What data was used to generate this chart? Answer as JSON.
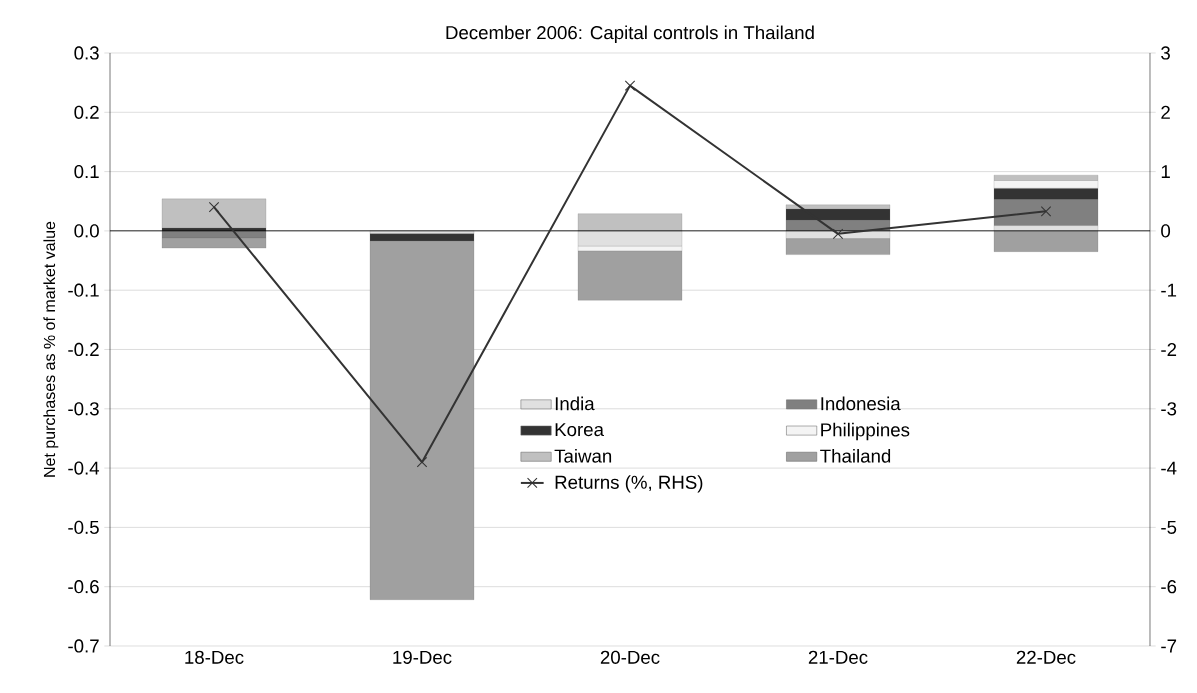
{
  "chart_data": {
    "type": "bar",
    "stacked": true,
    "title": "December 2006: Capital controls in Thailand",
    "ylabel": "Net purchases as % of market value",
    "categories": [
      "18-Dec",
      "19-Dec",
      "20-Dec",
      "21-Dec",
      "22-Dec"
    ],
    "ylim": [
      -0.7,
      0.3
    ],
    "yticks": [
      -0.7,
      -0.6,
      -0.5,
      -0.4,
      -0.3,
      -0.2,
      -0.1,
      {
        "value": 0,
        "label": "0.0"
      },
      0.1,
      0.2,
      0.3
    ],
    "y2lim": [
      -7,
      3
    ],
    "y2ticks": [
      -7,
      -6,
      -5,
      -4,
      -3,
      -2,
      -1,
      0,
      1,
      2,
      3
    ],
    "grid": "y",
    "legend": "center",
    "series": [
      {
        "name": "India",
        "color": "#e0e0e0",
        "values": [
          0,
          -0.005,
          -0.026,
          -0.013,
          0.009
        ]
      },
      {
        "name": "Indonesia",
        "color": "#808080",
        "values": [
          -0.012,
          0,
          0,
          0.018,
          0.044
        ]
      },
      {
        "name": "Korea",
        "color": "#333333",
        "values": [
          0.005,
          -0.012,
          0,
          0.019,
          0.019
        ]
      },
      {
        "name": "Philippines",
        "color": "#f4f4f4",
        "values": [
          0,
          0,
          -0.008,
          0,
          0.013
        ]
      },
      {
        "name": "Taiwan",
        "color": "#c0c0c0",
        "values": [
          0.049,
          0,
          0.029,
          0.007,
          0.009
        ]
      },
      {
        "name": "Thailand",
        "color": "#a0a0a0",
        "values": [
          -0.017,
          -0.605,
          -0.083,
          -0.027,
          -0.035
        ]
      },
      {
        "name": "Returns (%, RHS)",
        "type": "line",
        "axis": "y2",
        "color": "#333333",
        "marker": "cross",
        "line_style": "solid",
        "values": [
          0.4,
          -3.9,
          2.45,
          -0.05,
          0.33
        ]
      }
    ]
  }
}
